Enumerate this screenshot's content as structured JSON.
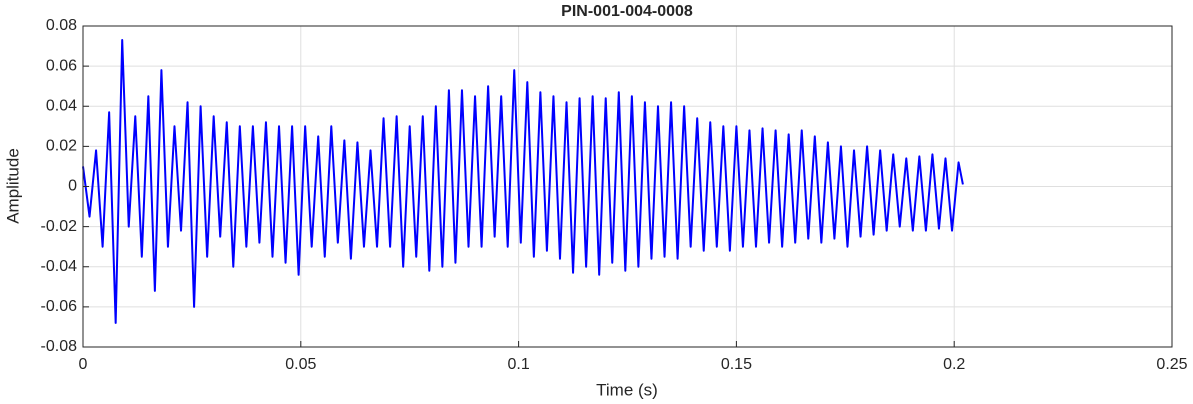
{
  "chart_data": {
    "type": "line",
    "title": "PIN-001-004-0008",
    "x_label": "Time (s)",
    "y_label": "Amplitude",
    "color": "#0000ff",
    "grid": true,
    "xlim": [
      0,
      0.25
    ],
    "xticks": [
      0,
      0.05,
      0.1,
      0.15,
      0.2,
      0.25
    ],
    "ylim": [
      -0.08,
      0.08
    ],
    "yticks": [
      -0.08,
      -0.06,
      -0.04,
      -0.02,
      0,
      0.02,
      0.04,
      0.06,
      0.08
    ],
    "x": [
      0,
      0.0015,
      0.003,
      0.0045,
      0.006,
      0.0075,
      0.009,
      0.0105,
      0.012,
      0.0135,
      0.015,
      0.0165,
      0.018,
      0.0195,
      0.021,
      0.0225,
      0.024,
      0.0255,
      0.027,
      0.0285,
      0.03,
      0.0315,
      0.033,
      0.0345,
      0.036,
      0.0375,
      0.039,
      0.0405,
      0.042,
      0.0435,
      0.045,
      0.0465,
      0.048,
      0.0495,
      0.051,
      0.0525,
      0.054,
      0.0555,
      0.057,
      0.0585,
      0.06,
      0.0615,
      0.063,
      0.0645,
      0.066,
      0.0675,
      0.069,
      0.0705,
      0.072,
      0.0735,
      0.075,
      0.0765,
      0.078,
      0.0795,
      0.081,
      0.0825,
      0.084,
      0.0855,
      0.087,
      0.0885,
      0.09,
      0.0915,
      0.093,
      0.0945,
      0.096,
      0.0975,
      0.099,
      0.1005,
      0.102,
      0.1035,
      0.105,
      0.1065,
      0.108,
      0.1095,
      0.111,
      0.1125,
      0.114,
      0.1155,
      0.117,
      0.1185,
      0.12,
      0.1215,
      0.123,
      0.1245,
      0.126,
      0.1275,
      0.129,
      0.1305,
      0.132,
      0.1335,
      0.135,
      0.1365,
      0.138,
      0.1395,
      0.141,
      0.1425,
      0.144,
      0.1455,
      0.147,
      0.1485,
      0.15,
      0.1515,
      0.153,
      0.1545,
      0.156,
      0.1575,
      0.159,
      0.1605,
      0.162,
      0.1635,
      0.165,
      0.1665,
      0.168,
      0.1695,
      0.171,
      0.1725,
      0.174,
      0.1755,
      0.177,
      0.1785,
      0.18,
      0.1815,
      0.183,
      0.1845,
      0.186,
      0.1875,
      0.189,
      0.1905,
      0.192,
      0.1935,
      0.195,
      0.1965,
      0.198,
      0.1995,
      0.201,
      0.202
    ],
    "values": [
      0.01,
      -0.015,
      0.018,
      -0.03,
      0.037,
      -0.068,
      0.073,
      -0.02,
      0.035,
      -0.035,
      0.045,
      -0.052,
      0.058,
      -0.03,
      0.03,
      -0.022,
      0.042,
      -0.06,
      0.04,
      -0.035,
      0.035,
      -0.025,
      0.032,
      -0.04,
      0.03,
      -0.03,
      0.03,
      -0.028,
      0.032,
      -0.035,
      0.03,
      -0.038,
      0.03,
      -0.044,
      0.03,
      -0.03,
      0.025,
      -0.035,
      0.03,
      -0.028,
      0.023,
      -0.036,
      0.022,
      -0.03,
      0.018,
      -0.03,
      0.034,
      -0.03,
      0.035,
      -0.04,
      0.03,
      -0.035,
      0.035,
      -0.042,
      0.04,
      -0.04,
      0.048,
      -0.038,
      0.048,
      -0.03,
      0.045,
      -0.03,
      0.05,
      -0.025,
      0.045,
      -0.03,
      0.058,
      -0.028,
      0.052,
      -0.035,
      0.047,
      -0.032,
      0.045,
      -0.036,
      0.042,
      -0.043,
      0.044,
      -0.04,
      0.045,
      -0.044,
      0.044,
      -0.038,
      0.047,
      -0.042,
      0.045,
      -0.04,
      0.042,
      -0.036,
      0.04,
      -0.035,
      0.042,
      -0.036,
      0.04,
      -0.03,
      0.034,
      -0.032,
      0.032,
      -0.03,
      0.03,
      -0.032,
      0.03,
      -0.03,
      0.028,
      -0.03,
      0.029,
      -0.028,
      0.028,
      -0.03,
      0.026,
      -0.028,
      0.028,
      -0.026,
      0.025,
      -0.028,
      0.022,
      -0.026,
      0.02,
      -0.03,
      0.018,
      -0.025,
      0.02,
      -0.024,
      0.018,
      -0.022,
      0.016,
      -0.02,
      0.014,
      -0.022,
      0.015,
      -0.022,
      0.016,
      -0.021,
      0.014,
      -0.022,
      0.012,
      0.001
    ]
  }
}
